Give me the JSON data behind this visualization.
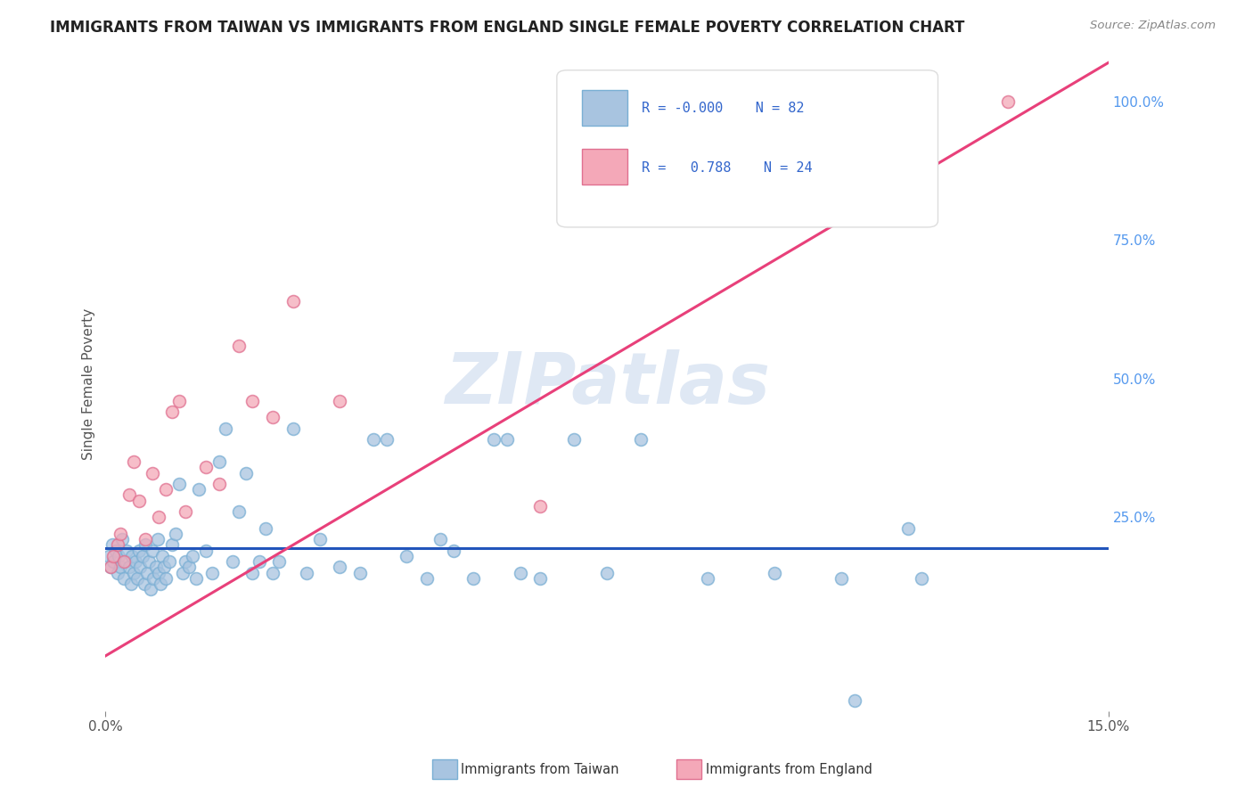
{
  "title": "IMMIGRANTS FROM TAIWAN VS IMMIGRANTS FROM ENGLAND SINGLE FEMALE POVERTY CORRELATION CHART",
  "source": "Source: ZipAtlas.com",
  "ylabel": "Single Female Poverty",
  "legend_R": [
    "-0.000",
    "0.788"
  ],
  "legend_N": [
    82,
    24
  ],
  "xlim": [
    0.0,
    15.0
  ],
  "ylim": [
    -10.0,
    108.0
  ],
  "taiwan_color": "#a8c4e0",
  "taiwan_edge_color": "#7aafd4",
  "england_color": "#f4a8b8",
  "england_edge_color": "#e07090",
  "taiwan_line_color": "#2255bb",
  "england_line_color": "#e8407a",
  "taiwan_scatter_x": [
    0.05,
    0.08,
    0.1,
    0.12,
    0.15,
    0.18,
    0.2,
    0.22,
    0.25,
    0.28,
    0.3,
    0.32,
    0.35,
    0.38,
    0.4,
    0.42,
    0.45,
    0.48,
    0.5,
    0.52,
    0.55,
    0.58,
    0.6,
    0.62,
    0.65,
    0.68,
    0.7,
    0.72,
    0.75,
    0.78,
    0.8,
    0.82,
    0.85,
    0.88,
    0.9,
    0.95,
    1.0,
    1.05,
    1.1,
    1.15,
    1.2,
    1.25,
    1.3,
    1.35,
    1.4,
    1.5,
    1.6,
    1.7,
    1.8,
    1.9,
    2.0,
    2.1,
    2.2,
    2.3,
    2.4,
    2.5,
    2.6,
    2.8,
    3.0,
    3.2,
    3.5,
    3.8,
    4.0,
    4.2,
    4.5,
    4.8,
    5.0,
    5.2,
    5.5,
    5.8,
    6.0,
    6.2,
    6.5,
    7.0,
    7.5,
    8.0,
    9.0,
    10.0,
    11.0,
    11.2,
    12.0,
    12.2
  ],
  "taiwan_scatter_y": [
    18.0,
    16.0,
    20.0,
    17.0,
    19.0,
    15.0,
    18.0,
    16.0,
    21.0,
    14.0,
    17.0,
    19.0,
    16.0,
    13.0,
    18.0,
    15.0,
    17.0,
    14.0,
    19.0,
    16.0,
    18.0,
    13.0,
    20.0,
    15.0,
    17.0,
    12.0,
    19.0,
    14.0,
    16.0,
    21.0,
    15.0,
    13.0,
    18.0,
    16.0,
    14.0,
    17.0,
    20.0,
    22.0,
    31.0,
    15.0,
    17.0,
    16.0,
    18.0,
    14.0,
    30.0,
    19.0,
    15.0,
    35.0,
    41.0,
    17.0,
    26.0,
    33.0,
    15.0,
    17.0,
    23.0,
    15.0,
    17.0,
    41.0,
    15.0,
    21.0,
    16.0,
    15.0,
    39.0,
    39.0,
    18.0,
    14.0,
    21.0,
    19.0,
    14.0,
    39.0,
    39.0,
    15.0,
    14.0,
    39.0,
    15.0,
    39.0,
    14.0,
    15.0,
    14.0,
    -8.0,
    23.0,
    14.0
  ],
  "england_scatter_x": [
    0.08,
    0.12,
    0.18,
    0.22,
    0.28,
    0.35,
    0.42,
    0.5,
    0.6,
    0.7,
    0.8,
    0.9,
    1.0,
    1.1,
    1.2,
    1.5,
    1.7,
    2.0,
    2.2,
    2.5,
    2.8,
    3.5,
    6.5,
    13.5
  ],
  "england_scatter_y": [
    16.0,
    18.0,
    20.0,
    22.0,
    17.0,
    29.0,
    35.0,
    28.0,
    21.0,
    33.0,
    25.0,
    30.0,
    44.0,
    46.0,
    26.0,
    34.0,
    31.0,
    56.0,
    46.0,
    43.0,
    64.0,
    46.0,
    27.0,
    100.0
  ],
  "taiwan_trendline_x": [
    0.0,
    15.0
  ],
  "taiwan_trendline_y": [
    19.5,
    19.5
  ],
  "england_trendline_x": [
    0.0,
    15.0
  ],
  "england_trendline_y": [
    0.0,
    107.0
  ],
  "right_yticks": [
    25,
    50,
    75,
    100
  ],
  "watermark_text": "ZIPatlas",
  "bg_color": "#ffffff",
  "grid_color": "#cccccc",
  "marker_size": 100,
  "right_tick_color": "#5599ee"
}
